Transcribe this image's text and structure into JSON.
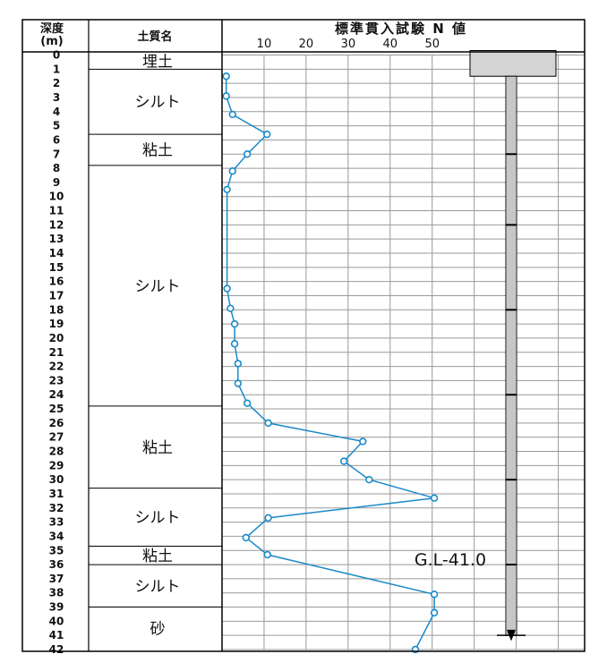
{
  "header": {
    "depth_title_line1": "深度",
    "depth_title_line2": "(m)",
    "soil_title": "土質名",
    "n_title": "標準貫入試験 N 値"
  },
  "annotation": {
    "gl_label": "G.L-41.0"
  },
  "colors": {
    "series": "#1a8ac9",
    "grid": "#999999",
    "line": "#000000",
    "casing": "#d4d4d4"
  },
  "chart_data": {
    "type": "line",
    "title": "標準貫入試験 N 値",
    "x_ticks": [
      10,
      20,
      30,
      40,
      50
    ],
    "depth_ticks": [
      0,
      1,
      2,
      3,
      4,
      5,
      6,
      7,
      8,
      9,
      10,
      11,
      12,
      13,
      14,
      15,
      16,
      17,
      18,
      19,
      20,
      21,
      22,
      23,
      24,
      25,
      26,
      27,
      28,
      29,
      30,
      31,
      32,
      33,
      34,
      35,
      36,
      37,
      38,
      39,
      40,
      41,
      42
    ],
    "xlim": [
      0,
      59
    ],
    "ylim": [
      0,
      42
    ],
    "grid": true,
    "soil_layers": [
      {
        "name": "埋土",
        "from": 0,
        "to": 1
      },
      {
        "name": "シルト",
        "from": 1,
        "to": 5.6
      },
      {
        "name": "粘土",
        "from": 5.6,
        "to": 7.8
      },
      {
        "name": "シルト",
        "from": 7.8,
        "to": 24.8
      },
      {
        "name": "粘土",
        "from": 24.8,
        "to": 30.6
      },
      {
        "name": "シルト",
        "from": 30.6,
        "to": 34.7
      },
      {
        "name": "粘土",
        "from": 34.7,
        "to": 36
      },
      {
        "name": "シルト",
        "from": 36,
        "to": 39
      },
      {
        "name": "砂",
        "from": 39,
        "to": 42
      }
    ],
    "series": [
      {
        "points": [
          {
            "depth": 1.5,
            "n": 1
          },
          {
            "depth": 2.9,
            "n": 1
          },
          {
            "depth": 4.2,
            "n": 2.5
          },
          {
            "depth": 5.6,
            "n": 10.7
          },
          {
            "depth": 7.0,
            "n": 6
          },
          {
            "depth": 8.2,
            "n": 2.5
          },
          {
            "depth": 9.5,
            "n": 1.2
          },
          {
            "depth": 16.5,
            "n": 1.2
          },
          {
            "depth": 17.9,
            "n": 2
          },
          {
            "depth": 19.0,
            "n": 3
          },
          {
            "depth": 20.4,
            "n": 3
          },
          {
            "depth": 21.8,
            "n": 3.8
          },
          {
            "depth": 23.2,
            "n": 3.8
          },
          {
            "depth": 24.6,
            "n": 6
          },
          {
            "depth": 26.0,
            "n": 11
          },
          {
            "depth": 27.3,
            "n": 33.5
          },
          {
            "depth": 28.7,
            "n": 29
          },
          {
            "depth": 30.0,
            "n": 35
          },
          {
            "depth": 31.3,
            "n": 50.5
          },
          {
            "depth": 32.7,
            "n": 11
          },
          {
            "depth": 34.1,
            "n": 5.7
          },
          {
            "depth": 35.3,
            "n": 10.8
          },
          {
            "depth": 38.1,
            "n": 50.5
          },
          {
            "depth": 39.4,
            "n": 50.5
          },
          {
            "depth": 42.0,
            "n": 46
          }
        ]
      }
    ]
  }
}
